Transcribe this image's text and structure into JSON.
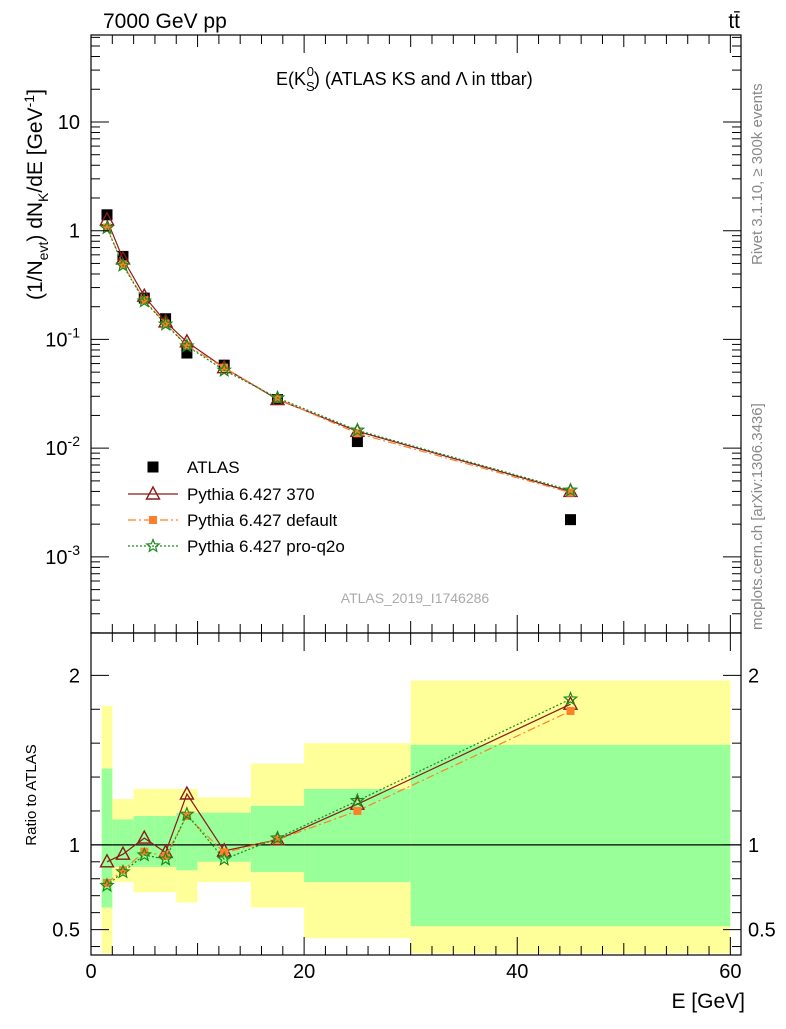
{
  "header": {
    "left": "7000 GeV pp",
    "right": "tt̄"
  },
  "side_labels": {
    "rivet": "Rivet 3.1.10, ≥ 300k events",
    "mcplots": "mcplots.cern.ch [arXiv:1306.3436]"
  },
  "watermark": "ATLAS_2019_I1746286",
  "chart_data": [
    {
      "type": "scatter",
      "title": "E(K_S^0) (ATLAS KS and Λ in ttbar)",
      "ylabel": "(1/N_evt) dN_K/dE [GeV^-1]",
      "xlim": [
        0,
        61
      ],
      "ylim_log10": [
        -3.7,
        1.8
      ],
      "y_scale": "log",
      "y_ticks": [
        "10^-3",
        "10^-2",
        "10^-1",
        "1",
        "10"
      ],
      "legend_position": "lower-left",
      "series": [
        {
          "name": "ATLAS",
          "color": "#000000",
          "marker": "square",
          "x": [
            1.5,
            3,
            5,
            7,
            9,
            12.5,
            17.5,
            25,
            45
          ],
          "y": [
            1.4,
            0.58,
            0.24,
            0.155,
            0.075,
            0.058,
            0.028,
            0.0115,
            0.0022
          ]
        },
        {
          "name": "Pythia 6.427 370",
          "color": "#8b1a1a",
          "marker": "triangle",
          "line": "solid",
          "x": [
            1.5,
            3,
            5,
            7,
            9,
            12.5,
            17.5,
            25,
            45
          ],
          "y": [
            1.26,
            0.55,
            0.25,
            0.145,
            0.095,
            0.055,
            0.028,
            0.0143,
            0.004
          ]
        },
        {
          "name": "Pythia 6.427 default",
          "color": "#ff7f2a",
          "marker": "square-small",
          "line": "dashdot",
          "x": [
            1.5,
            3,
            5,
            7,
            9,
            12.5,
            17.5,
            25,
            45
          ],
          "y": [
            1.07,
            0.49,
            0.23,
            0.14,
            0.088,
            0.055,
            0.0285,
            0.0137,
            0.0039
          ]
        },
        {
          "name": "Pythia 6.427 pro-q2o",
          "color": "#1a8a1a",
          "marker": "star",
          "line": "dotted",
          "x": [
            1.5,
            3,
            5,
            7,
            9,
            12.5,
            17.5,
            25,
            45
          ],
          "y": [
            1.06,
            0.48,
            0.225,
            0.138,
            0.087,
            0.052,
            0.029,
            0.0146,
            0.0041
          ]
        }
      ]
    },
    {
      "type": "scatter",
      "ylabel": "Ratio to ATLAS",
      "xlabel": "E [GeV]",
      "xlim": [
        0,
        61
      ],
      "ylim": [
        0.35,
        2.25
      ],
      "x_ticks": [
        "0",
        "20",
        "40",
        "60"
      ],
      "y_ticks": [
        "0.5",
        "1",
        "2"
      ],
      "bands": {
        "bins": [
          [
            1,
            2
          ],
          [
            2,
            4
          ],
          [
            4,
            6
          ],
          [
            6,
            8
          ],
          [
            8,
            10
          ],
          [
            10,
            15
          ],
          [
            15,
            20
          ],
          [
            20,
            30
          ],
          [
            30,
            60
          ]
        ],
        "inner": [
          [
            0.63,
            1.45
          ],
          [
            0.87,
            1.15
          ],
          [
            0.87,
            1.17
          ],
          [
            0.87,
            1.17
          ],
          [
            0.85,
            1.19
          ],
          [
            0.9,
            1.19
          ],
          [
            0.84,
            1.23
          ],
          [
            0.78,
            1.33
          ],
          [
            0.52,
            1.59
          ]
        ],
        "outer": [
          [
            0.36,
            1.82
          ],
          [
            0.78,
            1.27
          ],
          [
            0.72,
            1.33
          ],
          [
            0.72,
            1.33
          ],
          [
            0.66,
            1.33
          ],
          [
            0.78,
            1.28
          ],
          [
            0.63,
            1.48
          ],
          [
            0.45,
            1.6
          ],
          [
            0.36,
            1.97
          ]
        ],
        "inner_color": "#99ff99",
        "outer_color": "#ffff99"
      },
      "series": [
        {
          "name": "Pythia 6.427 370",
          "color": "#8b1a1a",
          "marker": "triangle",
          "line": "solid",
          "x": [
            1.5,
            3,
            5,
            7,
            9,
            12.5,
            17.5,
            25,
            45
          ],
          "y": [
            0.9,
            0.945,
            1.04,
            0.955,
            1.3,
            0.965,
            1.03,
            1.24,
            1.83
          ]
        },
        {
          "name": "Pythia 6.427 default",
          "color": "#ff7f2a",
          "marker": "square-small",
          "line": "dashdot",
          "x": [
            1.5,
            3,
            5,
            7,
            9,
            12.5,
            17.5,
            25,
            45
          ],
          "y": [
            0.775,
            0.85,
            0.96,
            0.935,
            1.17,
            0.955,
            1.03,
            1.2,
            1.79
          ]
        },
        {
          "name": "Pythia 6.427 pro-q2o",
          "color": "#1a8a1a",
          "marker": "star",
          "line": "dotted",
          "x": [
            1.5,
            3,
            5,
            7,
            9,
            12.5,
            17.5,
            25,
            45
          ],
          "y": [
            0.76,
            0.84,
            0.94,
            0.915,
            1.18,
            0.915,
            1.04,
            1.26,
            1.86
          ]
        }
      ]
    }
  ]
}
